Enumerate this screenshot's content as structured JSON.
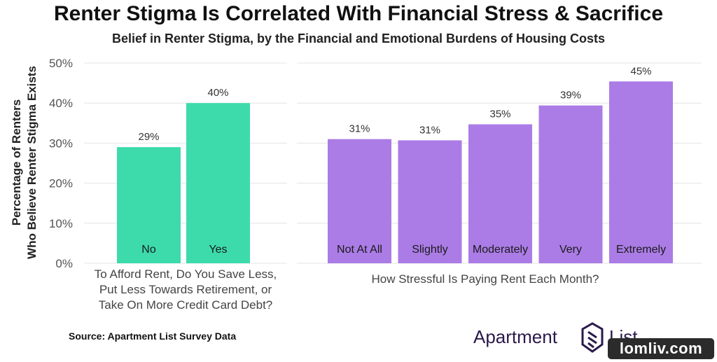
{
  "title": "Renter Stigma Is Correlated With Financial Stress & Sacrifice",
  "subtitle": "Belief in Renter Stigma, by the Financial and Emotional Burdens of Housing Costs",
  "ylabel_lines": [
    "Percentage of Renters",
    "Who Believe Renter Stigma Exists"
  ],
  "source": "Source: Apartment List Survey Data",
  "logo": {
    "word1": "Apartment",
    "word2": "List",
    "color": "#2a1a4a"
  },
  "watermark": "lomliv.com",
  "chart_data": [
    {
      "type": "bar",
      "categories": [
        "No",
        "Yes"
      ],
      "values": [
        29,
        40
      ],
      "value_labels": [
        "29%",
        "40%"
      ],
      "xlabel_lines": [
        "To Afford Rent, Do You Save Less,",
        "Put Less Towards Retirement, or",
        "Take On More Credit Card Debt?"
      ],
      "ylim": [
        0,
        50
      ],
      "yticks": [
        "0%",
        "10%",
        "20%",
        "30%",
        "40%",
        "50%"
      ],
      "color": "#3ddbac",
      "grid": true
    },
    {
      "type": "bar",
      "categories": [
        "Not At All",
        "Slightly",
        "Moderately",
        "Very",
        "Extremely"
      ],
      "values": [
        31,
        30.7,
        34.7,
        39.4,
        45.4
      ],
      "value_labels": [
        "31%",
        "31%",
        "35%",
        "39%",
        "45%"
      ],
      "xlabel_lines": [
        "How Stressful Is Paying Rent Each Month?"
      ],
      "ylim": [
        0,
        50
      ],
      "color": "#ab7ce6",
      "grid": true
    }
  ]
}
